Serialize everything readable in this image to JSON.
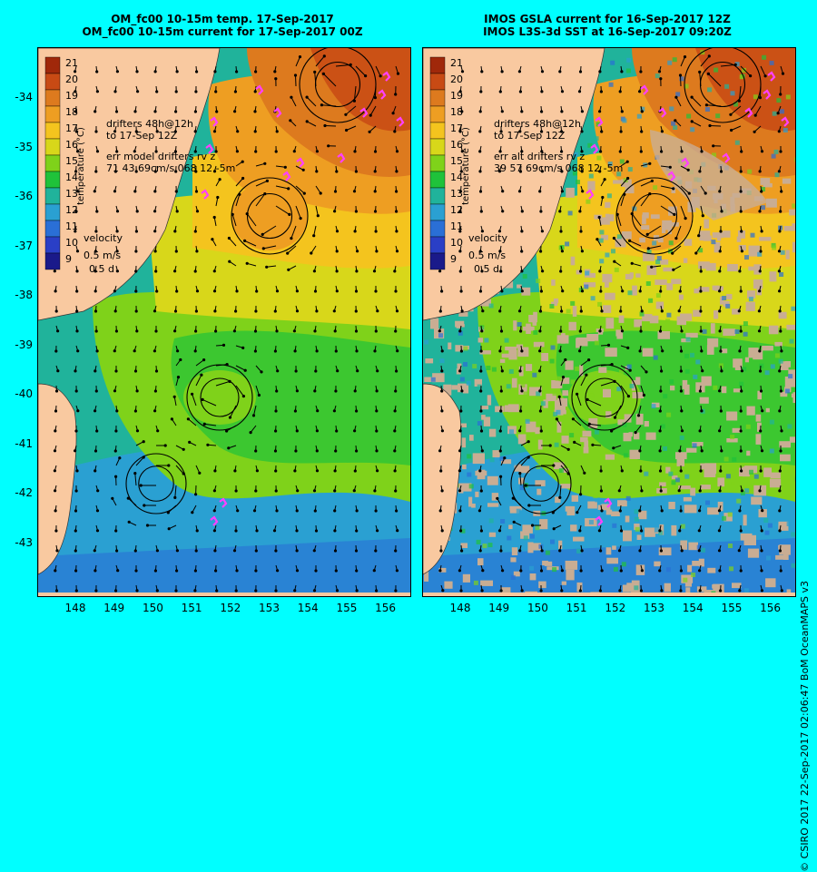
{
  "left": {
    "title_line1": "OM_fc00 10-15m temp. 17-Sep-2017",
    "title_line2": "OM_fc00 10-15m current for 17-Sep-2017 00Z",
    "drifters_line1": "drifters 48h@12h",
    "drifters_line2": "to 17-Sep 12Z",
    "err_line1": "err model drifters rv z",
    "err_line2": "71 43 69cm/s 068 12 -5m"
  },
  "right": {
    "title_line1": "IMOS GSLA current for 16-Sep-2017 12Z",
    "title_line2": "IMOS L3S-3d SST at 16-Sep-2017 09:20Z",
    "drifters_line1": "drifters 48h@12h",
    "drifters_line2": "to 17-Sep 12Z",
    "err_line1": "err alt drifters rv z",
    "err_line2": "39 57 69cm/s 068 12 -5m"
  },
  "colorbar": {
    "label": "temperature (°C)",
    "ticks": [
      "21",
      "20",
      "19",
      "18",
      "17",
      "16",
      "15",
      "14",
      "13",
      "12",
      "11",
      "10",
      "9"
    ],
    "colors": [
      "#a0280a",
      "#c84a14",
      "#dd7a1e",
      "#ee9e22",
      "#f4c41e",
      "#d8d71a",
      "#7fd21a",
      "#1fc23a",
      "#20b39b",
      "#2aa0d2",
      "#2a6fd6",
      "#2a3fc6",
      "#1a1a8a"
    ]
  },
  "velocity_key": {
    "label": "velocity",
    "speed": "0.5 m/s",
    "time": "0.5 d"
  },
  "lat_labels": [
    "-34",
    "-35",
    "-36",
    "-37",
    "-38",
    "-39",
    "-40",
    "-41",
    "-42",
    "-43"
  ],
  "lon_labels": [
    "148",
    "149",
    "150",
    "151",
    "152",
    "153",
    "154",
    "155",
    "156"
  ],
  "credit": "© CSIRO 2017  22-Sep-2017 02:06:47 BoM OceanMAPS v3",
  "colors": {
    "background": "#00FFFF",
    "land": "#f9c9a0",
    "cloud": "#c9ad93",
    "drifter": "#ff40ff"
  }
}
